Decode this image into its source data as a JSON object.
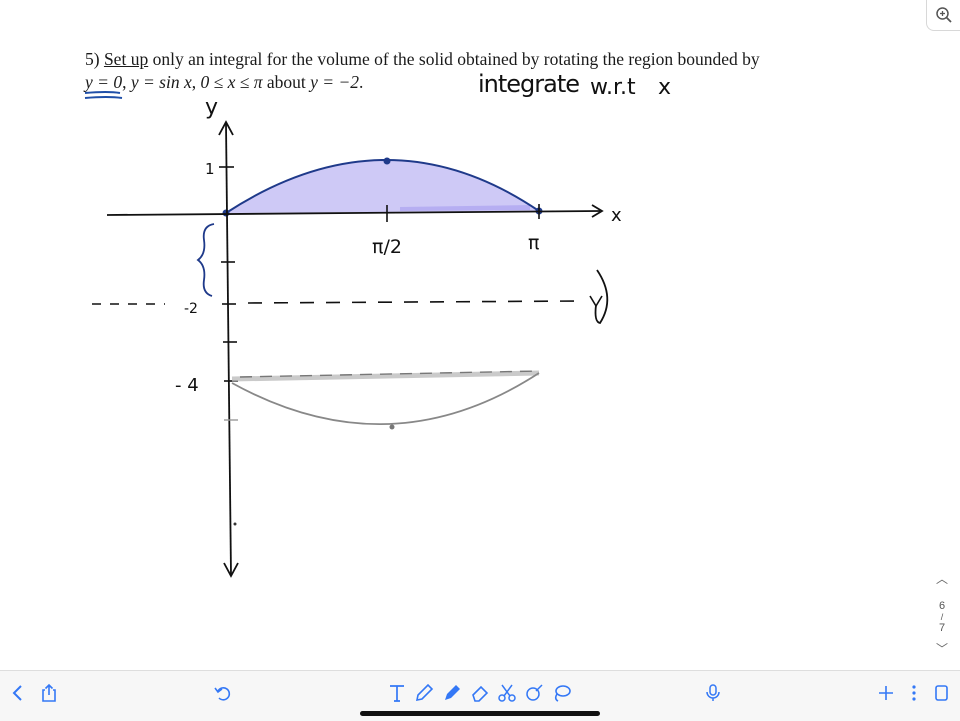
{
  "problem": {
    "number": "5)",
    "set_up": "Set up",
    "text_1": " only an integral for the volume of the solid obtained by rotating the region bounded by",
    "eq_y0": "y = 0",
    "text_2": ", ",
    "eq_sin": "y = sin x",
    "text_3": ", ",
    "eq_range": "0 ≤ x ≤ π",
    "text_4": " about ",
    "eq_axis": "y = −2",
    "text_5": "."
  },
  "annotations": {
    "integrate": "integrate",
    "wrt": "w.r.t",
    "var": "x"
  },
  "graph": {
    "y_axis_label": "y",
    "x_axis_label": "x",
    "tick_1": "1",
    "tick_neg2": "-2",
    "tick_neg4": "- 4",
    "tick_pi_half": "π/2",
    "tick_pi": "π",
    "region_color": "#c9c3f5",
    "curve_color": "#1f3a8a",
    "reflection_color": "#888888"
  },
  "pager": {
    "current": "6",
    "separator": "/",
    "total": "7"
  },
  "toolbar": {
    "icons": [
      "chevron-left-icon",
      "share-icon",
      "undo-icon",
      "text-tool-icon",
      "pen-icon",
      "highlighter-icon",
      "eraser-icon",
      "scissors-icon",
      "shape-icon",
      "lasso-icon",
      "microphone-icon",
      "plus-icon",
      "more-icon",
      "pages-icon"
    ]
  }
}
